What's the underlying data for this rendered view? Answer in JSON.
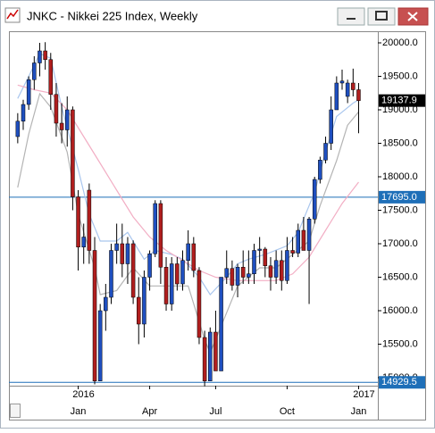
{
  "window": {
    "title": "JNKC - Nikkei 225 Index, Weekly"
  },
  "chart_data": {
    "type": "candlestick",
    "up_color": "#1f4fbf",
    "down_color": "#b01e1e",
    "wick_color": "#000000",
    "open": [
      18600,
      18830,
      19080,
      19450,
      19700,
      19880,
      19750,
      19230,
      18800,
      18700,
      19000,
      17700,
      16950,
      17800,
      16900,
      14950,
      16000,
      16200,
      16900,
      17000,
      16700,
      17000,
      16200,
      15800,
      16500,
      16850,
      17600,
      16650,
      16100,
      16700,
      16400,
      16750,
      17000,
      16600,
      15600,
      14950,
      15680,
      15100,
      16500,
      16630,
      16380,
      16650,
      16500,
      16550,
      16900,
      16920,
      16670,
      16500,
      16750,
      16450,
      16900,
      16860,
      17200,
      16900,
      17370,
      17960,
      18250,
      18500,
      19000,
      19400,
      19200,
      19400,
      19300
    ],
    "high": [
      18950,
      19150,
      19500,
      19800,
      20000,
      20010,
      19850,
      19400,
      19100,
      19200,
      19050,
      17800,
      17300,
      17900,
      17100,
      16100,
      16400,
      17000,
      17300,
      17300,
      17100,
      17050,
      16500,
      16600,
      16900,
      17650,
      17650,
      16800,
      16800,
      16800,
      16900,
      17200,
      17100,
      16650,
      15700,
      15750,
      16000,
      16500,
      16900,
      16750,
      16700,
      16900,
      16900,
      17000,
      17100,
      16950,
      16800,
      16900,
      16900,
      17100,
      17100,
      17300,
      17400,
      17400,
      18000,
      18300,
      18600,
      19200,
      19500,
      19600,
      19450,
      19615,
      19400
    ],
    "low": [
      18500,
      18700,
      19000,
      19300,
      19500,
      19600,
      19000,
      18600,
      18500,
      18450,
      17500,
      16600,
      16700,
      16700,
      14900,
      14950,
      15700,
      16100,
      16700,
      16500,
      16400,
      16100,
      15500,
      15600,
      16300,
      16800,
      16400,
      16000,
      16000,
      16300,
      16300,
      16600,
      16500,
      15500,
      14870,
      14950,
      15100,
      15100,
      16400,
      16300,
      16200,
      16400,
      16400,
      16400,
      16700,
      16500,
      16300,
      16400,
      16300,
      16400,
      16800,
      16800,
      16900,
      16100,
      17300,
      17900,
      18200,
      18400,
      19000,
      19300,
      19100,
      19200,
      18650
    ],
    "close": [
      18830,
      19080,
      19450,
      19700,
      19880,
      19750,
      19230,
      18800,
      18700,
      19000,
      17700,
      16950,
      17100,
      16900,
      14950,
      16000,
      16200,
      16900,
      17000,
      16700,
      17000,
      16200,
      15800,
      16500,
      16850,
      17600,
      16650,
      16100,
      16700,
      16400,
      16750,
      17000,
      16600,
      15600,
      14950,
      15680,
      15100,
      16500,
      16630,
      16380,
      16650,
      16500,
      16550,
      16900,
      16920,
      16670,
      16500,
      16750,
      16450,
      16900,
      16860,
      17200,
      16900,
      17370,
      17960,
      18250,
      18500,
      19000,
      19400,
      19430,
      19400,
      19300,
      19137.9
    ],
    "lines": [
      {
        "color": "#b4b4b4",
        "x": [
          0,
          2,
          4,
          6,
          9,
          11,
          14,
          15,
          18,
          21,
          24,
          28,
          31,
          34,
          35,
          38,
          40,
          44,
          47,
          50,
          53,
          55,
          58,
          60,
          62
        ],
        "values": [
          17840,
          18640,
          19240,
          19040,
          18370,
          17440,
          16640,
          16240,
          16300,
          16640,
          16370,
          16370,
          16370,
          15570,
          15370,
          15970,
          16370,
          16640,
          16640,
          16840,
          17040,
          17570,
          18240,
          18770,
          18970
        ]
      },
      {
        "color": "#a9c6ee",
        "x": [
          0,
          2,
          4,
          6,
          8,
          11,
          13,
          15,
          18,
          20,
          23,
          25,
          28,
          30,
          33,
          35,
          38,
          40,
          42,
          45,
          49,
          51,
          54,
          56,
          58,
          61,
          62
        ],
        "values": [
          19170,
          19500,
          19840,
          19770,
          19040,
          18110,
          17440,
          17040,
          17040,
          17170,
          16770,
          16900,
          16840,
          16770,
          16500,
          16240,
          16500,
          16700,
          16770,
          16840,
          16970,
          17170,
          17770,
          18370,
          18900,
          19100,
          19150
        ]
      },
      {
        "color": "#f2aec4",
        "x": [
          0,
          3,
          6,
          9,
          12,
          15,
          18,
          21,
          24,
          27,
          30,
          33,
          36,
          40,
          44,
          47,
          50,
          53,
          56,
          59,
          62
        ],
        "values": [
          19370,
          19300,
          19250,
          19000,
          18600,
          18200,
          17800,
          17400,
          17100,
          16900,
          16750,
          16600,
          16500,
          16450,
          16450,
          16450,
          16550,
          16800,
          17200,
          17600,
          17920
        ]
      }
    ],
    "hlines": [
      {
        "value": 17695,
        "label": "17695.0"
      },
      {
        "value": 14929.5,
        "label": "14929.5"
      }
    ],
    "hline_color": "#1e6fb8",
    "ylim": [
      14880,
      20160
    ],
    "yticks": [
      {
        "value": 15000,
        "label": "15000.0"
      },
      {
        "value": 15500,
        "label": "15500.0"
      },
      {
        "value": 16000,
        "label": "16000.0"
      },
      {
        "value": 16500,
        "label": "16500.0"
      },
      {
        "value": 17000,
        "label": "17000.0"
      },
      {
        "value": 17500,
        "label": "17500.0"
      },
      {
        "value": 18000,
        "label": "18000.0"
      },
      {
        "value": 18500,
        "label": "18500.0"
      },
      {
        "value": 19000,
        "label": "19000.0"
      },
      {
        "value": 19500,
        "label": "19500.0"
      },
      {
        "value": 20000,
        "label": "20000.0"
      }
    ],
    "xlim": [
      -1.6,
      65.5
    ],
    "xticks": [
      {
        "value": 11,
        "label": "Jan"
      },
      {
        "value": 24,
        "label": "Apr"
      },
      {
        "value": 36,
        "label": "Jul"
      },
      {
        "value": 49,
        "label": "Oct"
      },
      {
        "value": 62,
        "label": "Jan"
      }
    ],
    "year_ticks": [
      {
        "value": 11,
        "label": "2016"
      },
      {
        "value": 62,
        "label": "2017"
      }
    ]
  }
}
